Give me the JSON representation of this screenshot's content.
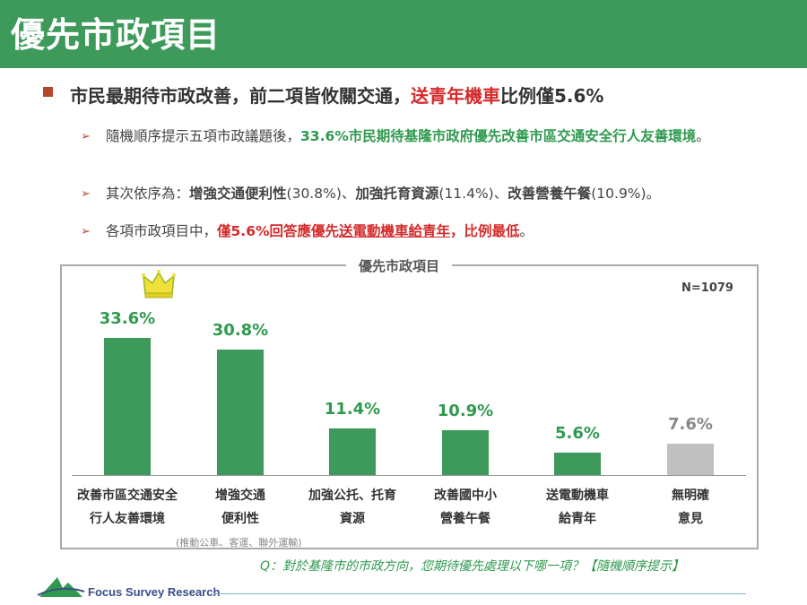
{
  "page_title": "優先市政項目",
  "headline": {
    "part1": "市民最期待市政改善，前二項皆攸關交通，",
    "part2_red": "送青年機車",
    "part3": "比例僅5.6%"
  },
  "bullets": [
    {
      "plain": "隨機順序提示五項市政議題後，",
      "highlight": "33.6%市民期待基隆市政府優先改善市區交通安全行人友善環境",
      "tail": "。"
    },
    {
      "plain": "其次依序為：",
      "b1": "增強交通便利性",
      "v1": "(30.8%)、",
      "b2": "加強托育資源",
      "v2": "(11.4%)、",
      "b3": "改善營養午餐",
      "v3": "(10.9%)。"
    },
    {
      "plain": "各項市政項目中，",
      "r1": "僅5.6%回答應優先",
      "r2": "送電動機車給青年",
      "r3": "，比例最低",
      "tail": "。"
    }
  ],
  "chart_data": {
    "type": "bar",
    "title": "優先市政項目",
    "n_label": "N=1079",
    "categories": [
      [
        "改善市區交通安全",
        "行人友善環境"
      ],
      [
        "增強交通",
        "便利性"
      ],
      [
        "加強公托、托育",
        "資源"
      ],
      [
        "改善國中小",
        "營養午餐"
      ],
      [
        "送電動機車",
        "給青年"
      ],
      [
        "無明確",
        "意見"
      ]
    ],
    "values": [
      33.6,
      30.8,
      11.4,
      10.9,
      5.6,
      7.6
    ],
    "value_labels": [
      "33.6%",
      "30.8%",
      "11.4%",
      "10.9%",
      "5.6%",
      "7.6%"
    ],
    "ylim": [
      0,
      40
    ],
    "colors": [
      "#3d9a5a",
      "#3d9a5a",
      "#3d9a5a",
      "#3d9a5a",
      "#3d9a5a",
      "#c0c0c0"
    ],
    "label_colors": [
      "#2f9a4f",
      "#2f9a4f",
      "#2f9a4f",
      "#2f9a4f",
      "#2f9a4f",
      "#888888"
    ],
    "note": "(推動公車、客運、聯外運輸)"
  },
  "question": "Q：對於基隆市的市政方向，您期待優先處理以下哪一項？【隨機順序提示】",
  "footer": {
    "logo_text": "Focus Survey Research"
  }
}
